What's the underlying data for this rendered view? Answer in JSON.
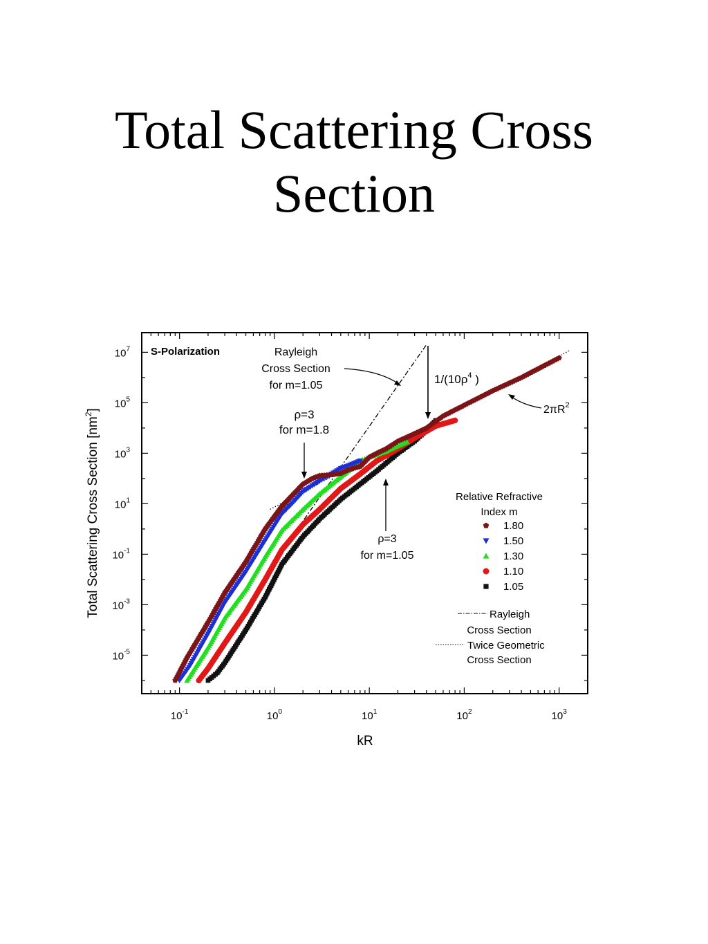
{
  "slide": {
    "title_line1": "Total Scattering Cross",
    "title_line2": "Section"
  },
  "chart_data": {
    "type": "scatter",
    "panel_label": "S-Polarization",
    "xlabel": "kR",
    "ylabel_main": "Total Scattering Cross Section [nm",
    "ylabel_sup": "2",
    "ylabel_end": "]",
    "xscale": "log",
    "yscale": "log",
    "xlim": [
      0.04,
      2000
    ],
    "ylim": [
      3e-07,
      60000000.0
    ],
    "x_ticks": [
      {
        "base": "10",
        "exp": "-1",
        "value": 0.1
      },
      {
        "base": "10",
        "exp": "0",
        "value": 1
      },
      {
        "base": "10",
        "exp": "1",
        "value": 10
      },
      {
        "base": "10",
        "exp": "2",
        "value": 100
      },
      {
        "base": "10",
        "exp": "3",
        "value": 1000
      }
    ],
    "y_ticks": [
      {
        "base": "10",
        "exp": "7",
        "value": 10000000.0
      },
      {
        "base": "10",
        "exp": "5",
        "value": 100000.0
      },
      {
        "base": "10",
        "exp": "3",
        "value": 1000.0
      },
      {
        "base": "10",
        "exp": "1",
        "value": 10
      },
      {
        "base": "10",
        "exp": "-1",
        "value": 0.1
      },
      {
        "base": "10",
        "exp": "-3",
        "value": 0.001
      },
      {
        "base": "10",
        "exp": "-5",
        "value": 1e-05
      }
    ],
    "legend": {
      "title_line1": "Relative Refractive",
      "title_line2": "Index m",
      "placement": "right"
    },
    "series": [
      {
        "name": "1.80",
        "marker": "pentagon",
        "color": "#7a1416",
        "points": [
          [
            0.09,
            1e-06
          ],
          [
            0.12,
            8e-06
          ],
          [
            0.2,
            0.0002
          ],
          [
            0.3,
            0.003
          ],
          [
            0.5,
            0.05
          ],
          [
            0.8,
            1
          ],
          [
            1.2,
            8
          ],
          [
            1.6,
            25
          ],
          [
            2,
            60
          ],
          [
            2.5,
            100
          ],
          [
            3,
            130
          ],
          [
            4,
            140
          ],
          [
            5,
            160
          ],
          [
            6,
            220
          ],
          [
            8,
            300
          ],
          [
            10,
            700
          ],
          [
            12,
            1000
          ],
          [
            15,
            1500
          ],
          [
            20,
            3000
          ],
          [
            30,
            6000
          ],
          [
            40,
            10000
          ],
          [
            60,
            30000
          ],
          [
            100,
            80000
          ],
          [
            200,
            300000
          ],
          [
            400,
            1000000
          ],
          [
            700,
            3000000
          ],
          [
            1000,
            6000000
          ]
        ]
      },
      {
        "name": "1.50",
        "marker": "triangle-down",
        "color": "#1a2fd6",
        "points": [
          [
            0.1,
            1e-06
          ],
          [
            0.13,
            4e-06
          ],
          [
            0.2,
            7e-05
          ],
          [
            0.3,
            0.0012
          ],
          [
            0.5,
            0.02
          ],
          [
            0.8,
            0.35
          ],
          [
            1.2,
            4
          ],
          [
            1.6,
            12
          ],
          [
            2,
            30
          ],
          [
            3,
            80
          ],
          [
            4,
            150
          ],
          [
            5,
            250
          ],
          [
            6,
            320
          ],
          [
            8,
            500
          ]
        ]
      },
      {
        "name": "1.30",
        "marker": "triangle-up",
        "color": "#22dd22",
        "points": [
          [
            0.12,
            1e-06
          ],
          [
            0.2,
            2e-05
          ],
          [
            0.3,
            0.0003
          ],
          [
            0.5,
            0.004
          ],
          [
            0.8,
            0.08
          ],
          [
            1.2,
            0.9
          ],
          [
            2,
            6
          ],
          [
            3,
            25
          ],
          [
            4,
            60
          ],
          [
            6,
            200
          ],
          [
            8,
            500
          ],
          [
            10,
            700
          ],
          [
            15,
            1200
          ],
          [
            20,
            2000
          ],
          [
            25,
            2800
          ]
        ]
      },
      {
        "name": "1.10",
        "marker": "circle",
        "color": "#e01818",
        "points": [
          [
            0.16,
            1e-06
          ],
          [
            0.2,
            3e-06
          ],
          [
            0.3,
            3e-05
          ],
          [
            0.5,
            0.0005
          ],
          [
            0.8,
            0.01
          ],
          [
            1.2,
            0.15
          ],
          [
            2,
            1.5
          ],
          [
            3,
            6
          ],
          [
            5,
            40
          ],
          [
            8,
            150
          ],
          [
            12,
            500
          ],
          [
            20,
            1500
          ],
          [
            30,
            4000
          ],
          [
            50,
            12000
          ],
          [
            80,
            20000
          ]
        ]
      },
      {
        "name": "1.05",
        "marker": "square",
        "color": "#111111",
        "points": [
          [
            0.2,
            1e-06
          ],
          [
            0.25,
            2e-06
          ],
          [
            0.3,
            5e-06
          ],
          [
            0.5,
            0.0001
          ],
          [
            0.8,
            0.002
          ],
          [
            1.2,
            0.04
          ],
          [
            2,
            0.5
          ],
          [
            3,
            2.5
          ],
          [
            5,
            15
          ],
          [
            8,
            60
          ],
          [
            12,
            200
          ],
          [
            20,
            1000
          ],
          [
            30,
            3000
          ],
          [
            40,
            8000
          ],
          [
            50,
            20000
          ]
        ]
      }
    ],
    "reference_lines": {
      "rayleigh": {
        "label_line1": "Rayleigh",
        "label_line2": "Cross Section",
        "style": "dash-dot",
        "points": [
          [
            1,
            0.05
          ],
          [
            40,
            20000000
          ]
        ]
      },
      "geometric": {
        "label_line1": "Twice Geometric",
        "label_line2": "Cross Section",
        "style": "dotted",
        "points": [
          [
            0.9,
            6
          ],
          [
            1300,
            12000000
          ]
        ]
      }
    },
    "annotations": {
      "rayleigh": {
        "line1": "Rayleigh",
        "line2": "Cross Section",
        "line3": "for m=1.05"
      },
      "rho_high": {
        "line1": "ρ=3",
        "line2": "for m=1.8"
      },
      "rho_low": {
        "line1": "ρ=3",
        "line2": "for m=1.05"
      },
      "inverse": {
        "text": "1/(10ρ",
        "sup": "4",
        "end": " )"
      },
      "geometric": {
        "text": "2πR",
        "sup": "2"
      }
    }
  }
}
